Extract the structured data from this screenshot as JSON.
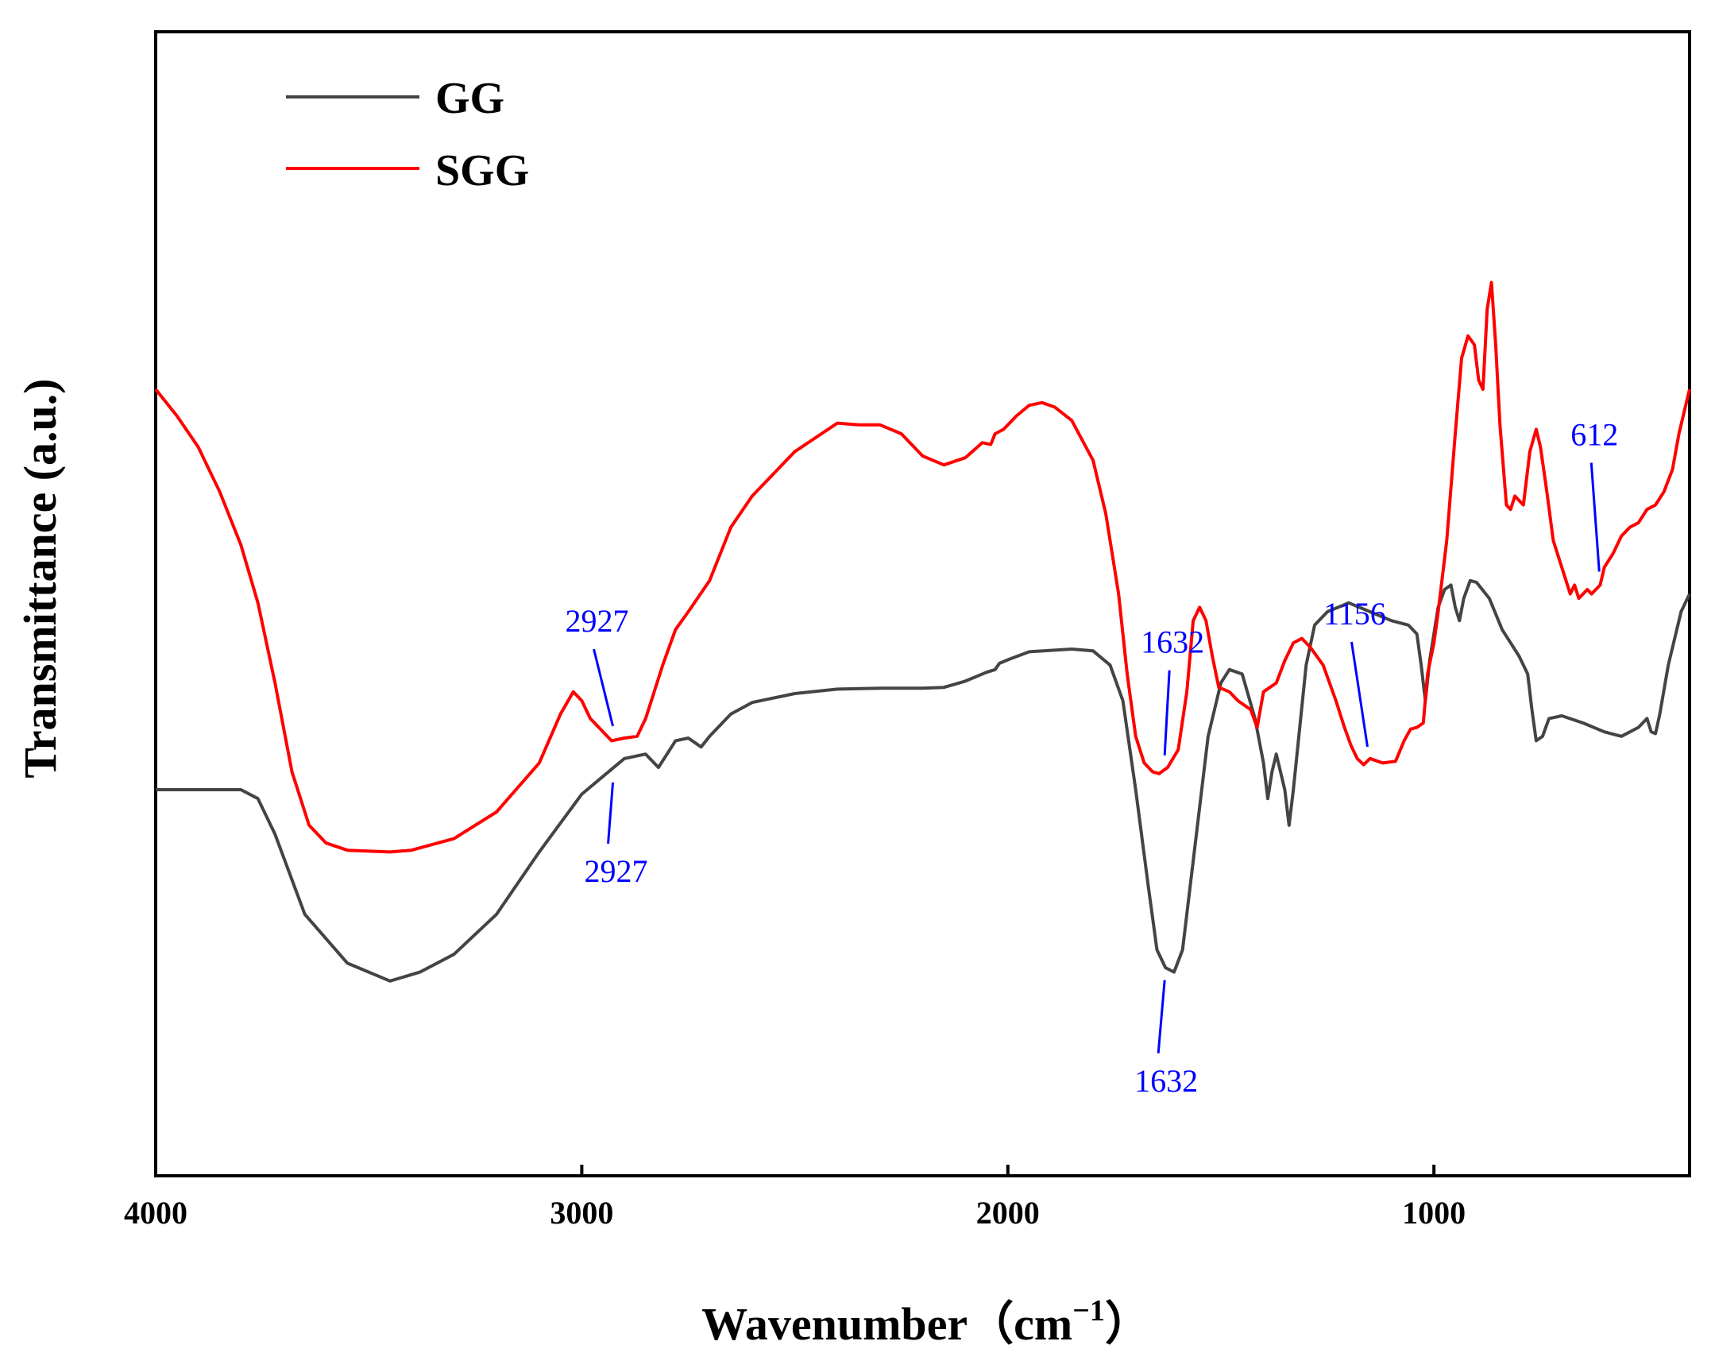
{
  "chart_data": {
    "type": "line",
    "title": "",
    "xlabel": "Wavenumber（cm",
    "xlabel_sup": "−1",
    "xlabel_close": "）",
    "ylabel": "Transmittance (a.u.)",
    "xlim": [
      4000,
      400
    ],
    "ylim": [
      0,
      100
    ],
    "x_reversed": true,
    "yticks_shown": false,
    "grid": false,
    "legend_position": "top-left",
    "xticks": [
      {
        "value": 4000,
        "label": "4000"
      },
      {
        "value": 3000,
        "label": "3000"
      },
      {
        "value": 2000,
        "label": "2000"
      },
      {
        "value": 1000,
        "label": "1000"
      }
    ],
    "series": [
      {
        "name": "GG",
        "label": "GG",
        "color": "#444444",
        "points": [
          [
            4000,
            30.0
          ],
          [
            3800,
            30.0
          ],
          [
            3760,
            29.0
          ],
          [
            3720,
            25.0
          ],
          [
            3650,
            16.0
          ],
          [
            3550,
            10.5
          ],
          [
            3450,
            8.5
          ],
          [
            3380,
            9.5
          ],
          [
            3300,
            11.5
          ],
          [
            3200,
            16.0
          ],
          [
            3100,
            23.0
          ],
          [
            3000,
            29.5
          ],
          [
            2950,
            31.5
          ],
          [
            2900,
            33.5
          ],
          [
            2850,
            34.0
          ],
          [
            2820,
            32.5
          ],
          [
            2800,
            34.0
          ],
          [
            2780,
            35.5
          ],
          [
            2750,
            35.8
          ],
          [
            2720,
            34.8
          ],
          [
            2700,
            36.0
          ],
          [
            2650,
            38.5
          ],
          [
            2600,
            39.8
          ],
          [
            2500,
            40.8
          ],
          [
            2400,
            41.3
          ],
          [
            2300,
            41.4
          ],
          [
            2200,
            41.4
          ],
          [
            2150,
            41.5
          ],
          [
            2100,
            42.2
          ],
          [
            2050,
            43.2
          ],
          [
            2030,
            43.5
          ],
          [
            2020,
            44.2
          ],
          [
            2000,
            44.6
          ],
          [
            1950,
            45.5
          ],
          [
            1850,
            45.8
          ],
          [
            1800,
            45.6
          ],
          [
            1760,
            44.0
          ],
          [
            1730,
            40.0
          ],
          [
            1700,
            30.0
          ],
          [
            1670,
            19.0
          ],
          [
            1650,
            12.0
          ],
          [
            1630,
            10.0
          ],
          [
            1610,
            9.5
          ],
          [
            1590,
            12.0
          ],
          [
            1560,
            24.0
          ],
          [
            1530,
            36.0
          ],
          [
            1500,
            42.0
          ],
          [
            1480,
            43.5
          ],
          [
            1450,
            43.0
          ],
          [
            1420,
            38.0
          ],
          [
            1400,
            33.0
          ],
          [
            1390,
            29.0
          ],
          [
            1380,
            32.0
          ],
          [
            1370,
            34.0
          ],
          [
            1350,
            30.0
          ],
          [
            1340,
            26.0
          ],
          [
            1330,
            30.0
          ],
          [
            1300,
            44.0
          ],
          [
            1280,
            48.5
          ],
          [
            1250,
            50.0
          ],
          [
            1200,
            51.0
          ],
          [
            1150,
            50.0
          ],
          [
            1100,
            49.0
          ],
          [
            1060,
            48.5
          ],
          [
            1040,
            47.5
          ],
          [
            1030,
            44.0
          ],
          [
            1020,
            40.0
          ],
          [
            1010,
            44.5
          ],
          [
            990,
            50.5
          ],
          [
            975,
            52.5
          ],
          [
            960,
            53.0
          ],
          [
            950,
            50.5
          ],
          [
            940,
            49.0
          ],
          [
            930,
            51.5
          ],
          [
            915,
            53.5
          ],
          [
            900,
            53.3
          ],
          [
            870,
            51.5
          ],
          [
            840,
            48.0
          ],
          [
            800,
            45.0
          ],
          [
            780,
            43.0
          ],
          [
            770,
            39.0
          ],
          [
            760,
            35.5
          ],
          [
            745,
            36.0
          ],
          [
            730,
            38.0
          ],
          [
            700,
            38.3
          ],
          [
            650,
            37.5
          ],
          [
            600,
            36.5
          ],
          [
            560,
            36.0
          ],
          [
            520,
            37.0
          ],
          [
            500,
            38.0
          ],
          [
            490,
            36.5
          ],
          [
            480,
            36.3
          ],
          [
            470,
            38.5
          ],
          [
            450,
            44.0
          ],
          [
            420,
            50.0
          ],
          [
            400,
            52.0
          ]
        ]
      },
      {
        "name": "SGG",
        "label": "SGG",
        "color": "#ff0000",
        "points": [
          [
            4000,
            75.0
          ],
          [
            3950,
            72.0
          ],
          [
            3900,
            68.5
          ],
          [
            3850,
            63.5
          ],
          [
            3800,
            57.5
          ],
          [
            3760,
            51.0
          ],
          [
            3720,
            42.0
          ],
          [
            3680,
            32.0
          ],
          [
            3640,
            26.0
          ],
          [
            3600,
            24.0
          ],
          [
            3550,
            23.2
          ],
          [
            3450,
            23.0
          ],
          [
            3400,
            23.2
          ],
          [
            3300,
            24.5
          ],
          [
            3200,
            27.5
          ],
          [
            3100,
            33.0
          ],
          [
            3050,
            38.5
          ],
          [
            3020,
            41.0
          ],
          [
            3000,
            40.0
          ],
          [
            2980,
            38.0
          ],
          [
            2950,
            36.5
          ],
          [
            2930,
            35.5
          ],
          [
            2900,
            35.8
          ],
          [
            2870,
            36.0
          ],
          [
            2850,
            38.0
          ],
          [
            2810,
            44.0
          ],
          [
            2780,
            48.0
          ],
          [
            2750,
            50.0
          ],
          [
            2700,
            53.5
          ],
          [
            2650,
            59.5
          ],
          [
            2600,
            63.0
          ],
          [
            2500,
            68.0
          ],
          [
            2400,
            71.2
          ],
          [
            2350,
            71.0
          ],
          [
            2300,
            71.0
          ],
          [
            2250,
            70.0
          ],
          [
            2200,
            67.5
          ],
          [
            2150,
            66.5
          ],
          [
            2100,
            67.3
          ],
          [
            2060,
            69.0
          ],
          [
            2040,
            68.8
          ],
          [
            2030,
            70.0
          ],
          [
            2010,
            70.5
          ],
          [
            1980,
            72.0
          ],
          [
            1950,
            73.2
          ],
          [
            1920,
            73.5
          ],
          [
            1890,
            73.0
          ],
          [
            1850,
            71.5
          ],
          [
            1800,
            67.0
          ],
          [
            1770,
            61.0
          ],
          [
            1740,
            52.0
          ],
          [
            1720,
            43.0
          ],
          [
            1700,
            36.0
          ],
          [
            1680,
            33.0
          ],
          [
            1660,
            32.0
          ],
          [
            1645,
            31.8
          ],
          [
            1625,
            32.5
          ],
          [
            1600,
            34.5
          ],
          [
            1580,
            41.0
          ],
          [
            1565,
            49.0
          ],
          [
            1550,
            50.5
          ],
          [
            1535,
            49.0
          ],
          [
            1520,
            45.0
          ],
          [
            1505,
            41.5
          ],
          [
            1480,
            41.0
          ],
          [
            1460,
            40.0
          ],
          [
            1430,
            39.0
          ],
          [
            1415,
            37.0
          ],
          [
            1400,
            41.0
          ],
          [
            1385,
            41.5
          ],
          [
            1370,
            42.0
          ],
          [
            1350,
            44.5
          ],
          [
            1330,
            46.5
          ],
          [
            1310,
            47.0
          ],
          [
            1290,
            46.0
          ],
          [
            1260,
            44.0
          ],
          [
            1230,
            40.0
          ],
          [
            1210,
            37.0
          ],
          [
            1195,
            35.0
          ],
          [
            1180,
            33.5
          ],
          [
            1165,
            32.8
          ],
          [
            1150,
            33.5
          ],
          [
            1120,
            33.0
          ],
          [
            1090,
            33.2
          ],
          [
            1070,
            35.5
          ],
          [
            1055,
            36.8
          ],
          [
            1040,
            37.0
          ],
          [
            1025,
            37.5
          ],
          [
            1015,
            43.0
          ],
          [
            1000,
            46.5
          ],
          [
            990,
            50.0
          ],
          [
            970,
            58.0
          ],
          [
            950,
            70.0
          ],
          [
            935,
            78.5
          ],
          [
            920,
            81.0
          ],
          [
            905,
            80.0
          ],
          [
            895,
            76.0
          ],
          [
            885,
            75.0
          ],
          [
            875,
            84.0
          ],
          [
            865,
            87.0
          ],
          [
            855,
            80.0
          ],
          [
            845,
            71.0
          ],
          [
            830,
            62.0
          ],
          [
            820,
            61.5
          ],
          [
            810,
            63.0
          ],
          [
            800,
            62.5
          ],
          [
            790,
            62.0
          ],
          [
            775,
            68.0
          ],
          [
            760,
            70.5
          ],
          [
            750,
            68.5
          ],
          [
            735,
            63.5
          ],
          [
            720,
            58.0
          ],
          [
            700,
            55.0
          ],
          [
            680,
            52.0
          ],
          [
            670,
            53.0
          ],
          [
            660,
            51.5
          ],
          [
            650,
            52.0
          ],
          [
            640,
            52.5
          ],
          [
            630,
            52.0
          ],
          [
            620,
            52.5
          ],
          [
            610,
            53.0
          ],
          [
            600,
            55.0
          ],
          [
            580,
            56.5
          ],
          [
            560,
            58.5
          ],
          [
            540,
            59.5
          ],
          [
            520,
            60.0
          ],
          [
            500,
            61.5
          ],
          [
            480,
            62.0
          ],
          [
            460,
            63.5
          ],
          [
            440,
            66.0
          ],
          [
            425,
            70.0
          ],
          [
            410,
            73.0
          ],
          [
            400,
            75.0
          ]
        ]
      }
    ],
    "annotations": [
      {
        "label": "2927",
        "series": "SGG",
        "color": "#0000ff"
      },
      {
        "label": "1632",
        "series": "SGG",
        "color": "#0000ff"
      },
      {
        "label": "1156",
        "series": "SGG",
        "color": "#0000ff"
      },
      {
        "label": "612",
        "series": "SGG",
        "color": "#0000ff"
      },
      {
        "label": "2927",
        "series": "GG",
        "color": "#0000ff"
      },
      {
        "label": "1632",
        "series": "GG",
        "color": "#0000ff"
      }
    ]
  }
}
